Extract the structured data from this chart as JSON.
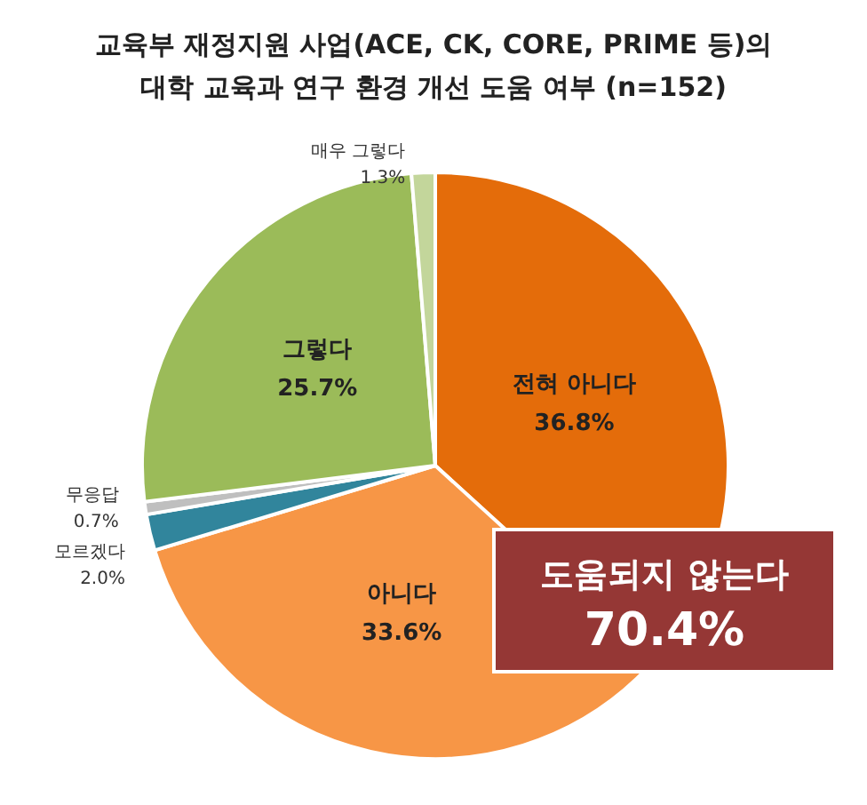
{
  "chart_data": {
    "type": "pie",
    "title": "교육부 재정지원 사업(ACE, CK, CORE, PRIME 등)의\n대학 교육과 연구 환경 개선 도움 여부 (n=152)",
    "categories": [
      "전혀 아니다",
      "아니다",
      "모르겠다",
      "무응답",
      "그렇다",
      "매우 그렇다"
    ],
    "values": [
      36.8,
      33.6,
      2.0,
      0.7,
      25.7,
      1.3
    ],
    "value_labels": [
      "36.8%",
      "33.6%",
      "2.0%",
      "0.7%",
      "25.7%",
      "1.3%"
    ],
    "colors": [
      "#e46c0a",
      "#f79646",
      "#31859c",
      "#bfbfbf",
      "#9bbb59",
      "#c3d69b"
    ],
    "annotations": [
      "도움되지 않는다",
      "70.4%"
    ],
    "legend": false
  }
}
